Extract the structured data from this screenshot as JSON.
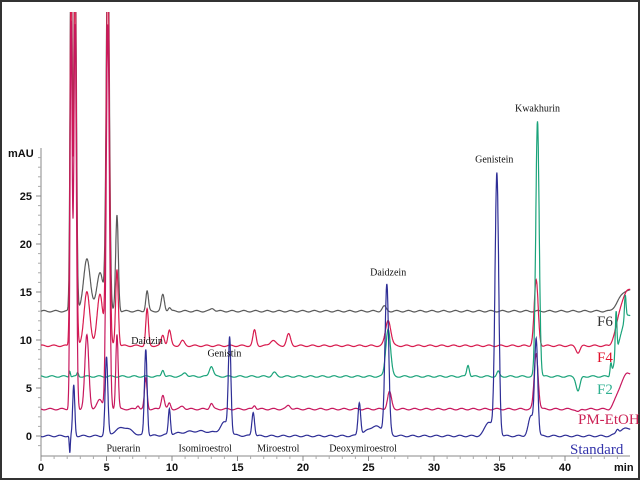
{
  "chart_data": {
    "type": "line",
    "xlabel": "min",
    "ylabel": "mAU",
    "xlim": [
      0,
      45
    ],
    "ylim": [
      -2,
      44
    ],
    "x_ticks": [
      0,
      5,
      10,
      15,
      20,
      25,
      30,
      35,
      40
    ],
    "y_ticks": [
      0,
      5,
      10,
      15,
      20,
      25
    ],
    "grid": false,
    "series": [
      {
        "name": "F6",
        "color": "#5a5a5a",
        "label_color": "#333333",
        "baseline": 13.0,
        "end_level": 15.2,
        "peaks": [
          [
            2.3,
            40,
            0.08
          ],
          [
            2.6,
            40,
            0.1
          ],
          [
            3.5,
            5.5,
            0.25
          ],
          [
            4.5,
            4,
            0.25
          ],
          [
            5.1,
            40,
            0.12
          ],
          [
            5.8,
            10,
            0.1
          ],
          [
            8.1,
            2.1,
            0.1
          ],
          [
            9.3,
            1.7,
            0.12
          ],
          [
            9.8,
            0.4,
            0.1
          ],
          [
            13.1,
            0.3,
            0.15
          ],
          [
            26.2,
            0.5,
            0.15
          ]
        ]
      },
      {
        "name": "F4",
        "color": "#d81b4e",
        "label_color": "#e0102a",
        "baseline": 9.4,
        "end_level": 15.2,
        "peaks": [
          [
            2.3,
            40,
            0.08
          ],
          [
            2.6,
            40,
            0.1
          ],
          [
            3.5,
            5.6,
            0.22
          ],
          [
            4.5,
            5.3,
            0.22
          ],
          [
            5.1,
            40,
            0.12
          ],
          [
            5.8,
            8,
            0.1
          ],
          [
            8.1,
            3.8,
            0.1
          ],
          [
            9.3,
            1.1,
            0.12
          ],
          [
            9.8,
            1.6,
            0.12
          ],
          [
            10.8,
            0.5,
            0.15
          ],
          [
            16.3,
            1.6,
            0.12
          ],
          [
            17.7,
            0.6,
            0.2
          ],
          [
            18.9,
            1.2,
            0.15
          ],
          [
            26.5,
            2.7,
            0.2
          ],
          [
            37.8,
            6.8,
            0.15
          ],
          [
            41,
            -0.7,
            0.15
          ]
        ]
      },
      {
        "name": "F2",
        "color": "#1aa37a",
        "label_color": "#2fb090",
        "baseline": 6.2,
        "end_level": 12.5,
        "peaks": [
          [
            2.2,
            0.6,
            0.05
          ],
          [
            2.8,
            0.4,
            0.06
          ],
          [
            9.3,
            0.7,
            0.1
          ],
          [
            11,
            0.4,
            0.15
          ],
          [
            13,
            1.1,
            0.15
          ],
          [
            17.8,
            0.4,
            0.15
          ],
          [
            26.5,
            5,
            0.18
          ],
          [
            32.6,
            1.2,
            0.1
          ],
          [
            34.9,
            0.5,
            0.1
          ],
          [
            37.9,
            26.6,
            0.13
          ],
          [
            41,
            -1.5,
            0.15
          ],
          [
            43.5,
            1.2,
            0.06
          ],
          [
            43.9,
            4.5,
            0.06
          ],
          [
            44.6,
            2.5,
            0.06
          ]
        ]
      },
      {
        "name": "PM-EtOH",
        "color": "#c8185e",
        "label_color": "#cc2255",
        "baseline": 2.8,
        "end_level": 6.5,
        "peaks": [
          [
            2.3,
            40,
            0.08
          ],
          [
            2.6,
            40,
            0.1
          ],
          [
            3.5,
            7.7,
            0.15
          ],
          [
            4.5,
            1,
            0.2
          ],
          [
            5.1,
            40,
            0.12
          ],
          [
            5.8,
            7.8,
            0.09
          ],
          [
            7.4,
            0.4,
            0.1
          ],
          [
            8.0,
            3.2,
            0.1
          ],
          [
            9.3,
            1.5,
            0.12
          ],
          [
            9.8,
            0.6,
            0.1
          ],
          [
            10.8,
            0.3,
            0.15
          ],
          [
            13,
            0.6,
            0.12
          ],
          [
            16.3,
            0.4,
            0.1
          ],
          [
            18.9,
            0.4,
            0.15
          ],
          [
            26.6,
            1.8,
            0.15
          ],
          [
            37.8,
            5.8,
            0.15
          ],
          [
            41,
            -0.3,
            0.15
          ]
        ]
      },
      {
        "name": "Standard",
        "color": "#2e2e96",
        "label_color": "#3333aa",
        "baseline": 0.0,
        "end_level": 0.8,
        "peaks": [
          [
            2.2,
            -1.8,
            0.04
          ],
          [
            2.5,
            5.3,
            0.08
          ],
          [
            5.0,
            8.1,
            0.1
          ],
          [
            6.3,
            0.9,
            0.6
          ],
          [
            8.0,
            9,
            0.1
          ],
          [
            9.8,
            2.7,
            0.08
          ],
          [
            12,
            0.5,
            1.5
          ],
          [
            14.4,
            9.8,
            0.1
          ],
          [
            14,
            1.2,
            0.3
          ],
          [
            16.2,
            2.5,
            0.1
          ],
          [
            24.3,
            3.4,
            0.1
          ],
          [
            25.5,
            1,
            0.6
          ],
          [
            26.4,
            15.5,
            0.14
          ],
          [
            34.8,
            27.2,
            0.14
          ],
          [
            34.2,
            1.5,
            0.3
          ],
          [
            37.8,
            10,
            0.12
          ],
          [
            37.4,
            2,
            0.2
          ],
          [
            44,
            0.4,
            0.1
          ]
        ]
      }
    ],
    "annotations": [
      {
        "text": "Puerarin",
        "x": 5.0,
        "y": -1.6
      },
      {
        "text": "Daidzin",
        "x": 8.1,
        "y": 9.6
      },
      {
        "text": "Isomiroestrol",
        "x": 10.5,
        "y": -1.6
      },
      {
        "text": "Genistin",
        "x": 14.0,
        "y": 8.3
      },
      {
        "text": "Miroestrol",
        "x": 16.5,
        "y": -1.6
      },
      {
        "text": "Deoxymiroestrol",
        "x": 22.0,
        "y": -1.6
      },
      {
        "text": "Daidzein",
        "x": 26.5,
        "y": 16.7
      },
      {
        "text": "Genistein",
        "x": 34.6,
        "y": 28.5
      },
      {
        "text": "Kwakhurin",
        "x": 37.9,
        "y": 33.8
      }
    ]
  }
}
